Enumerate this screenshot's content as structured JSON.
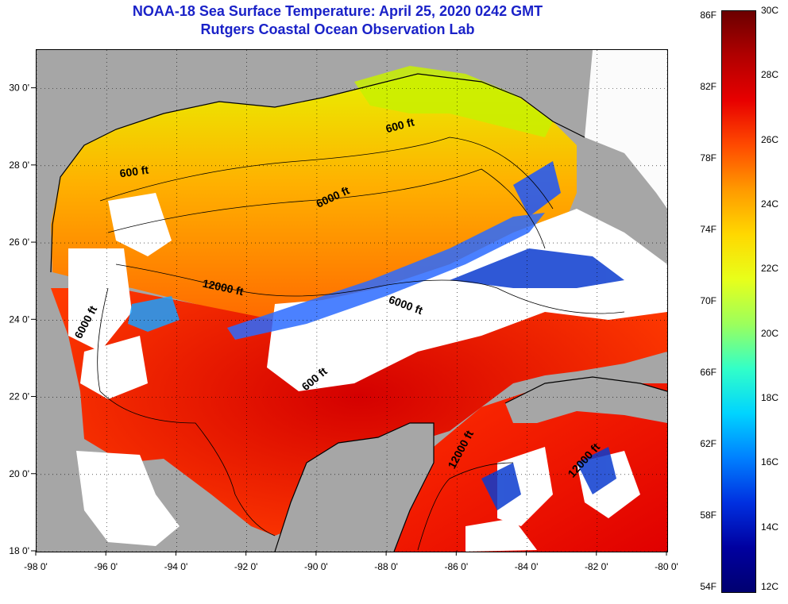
{
  "title": {
    "line1": "NOAA-18 Sea Surface Temperature:  April 25, 2020 0242 GMT",
    "line2": "Rutgers Coastal Ocean Observation Lab"
  },
  "map": {
    "lon_range": [
      -98,
      -80
    ],
    "lat_range": [
      18,
      31
    ],
    "lon_ticks": [
      {
        "value": -98,
        "label": "-98 0'"
      },
      {
        "value": -96,
        "label": "-96 0'"
      },
      {
        "value": -94,
        "label": "-94 0'"
      },
      {
        "value": -92,
        "label": "-92 0'"
      },
      {
        "value": -90,
        "label": "-90 0'"
      },
      {
        "value": -88,
        "label": "-88 0'"
      },
      {
        "value": -86,
        "label": "-86 0'"
      },
      {
        "value": -84,
        "label": "-84 0'"
      },
      {
        "value": -82,
        "label": "-82 0'"
      },
      {
        "value": -80,
        "label": "-80 0'"
      }
    ],
    "lat_ticks": [
      {
        "value": 30,
        "label": "30 0'"
      },
      {
        "value": 28,
        "label": "28 0'"
      },
      {
        "value": 26,
        "label": "26 0'"
      },
      {
        "value": 24,
        "label": "24 0'"
      },
      {
        "value": 22,
        "label": "22 0'"
      },
      {
        "value": 20,
        "label": "20 0'"
      },
      {
        "value": 18,
        "label": "18 0'"
      }
    ],
    "contour_labels": [
      {
        "text": "600 ft",
        "lon": -87.6,
        "lat": 28.95,
        "rotate": -15
      },
      {
        "text": "600 ft",
        "lon": -95.2,
        "lat": 27.75,
        "rotate": -8
      },
      {
        "text": "6000 ft",
        "lon": -89.5,
        "lat": 27.1,
        "rotate": -25
      },
      {
        "text": "12000 ft",
        "lon": -92.7,
        "lat": 24.75,
        "rotate": 12
      },
      {
        "text": "6000 ft",
        "lon": -87.5,
        "lat": 24.3,
        "rotate": 20
      },
      {
        "text": "6000 ft",
        "lon": -96.5,
        "lat": 23.9,
        "rotate": -62
      },
      {
        "text": "600 ft",
        "lon": -90.0,
        "lat": 22.4,
        "rotate": -40
      },
      {
        "text": "12000 ft",
        "lon": -85.8,
        "lat": 20.6,
        "rotate": -62
      },
      {
        "text": "12000 ft",
        "lon": -82.3,
        "lat": 20.3,
        "rotate": -48
      }
    ],
    "colors": {
      "land": "#a6a6a6",
      "cloud": "#ffffff",
      "coast": "#000000"
    }
  },
  "colorbar": {
    "fahrenheit": [
      "86F",
      "82F",
      "78F",
      "74F",
      "70F",
      "66F",
      "62F",
      "58F",
      "54F"
    ],
    "celsius": [
      "30C",
      "28C",
      "26C",
      "24C",
      "22C",
      "20C",
      "18C",
      "16C",
      "14C",
      "12C"
    ],
    "stops": [
      "#6b0000",
      "#b10000",
      "#e80000",
      "#ff4a00",
      "#ff9a00",
      "#ffd800",
      "#e8ff1a",
      "#9cff5c",
      "#32ffc8",
      "#00d4ff",
      "#0080ff",
      "#0030e0",
      "#0000a0",
      "#000070"
    ]
  }
}
